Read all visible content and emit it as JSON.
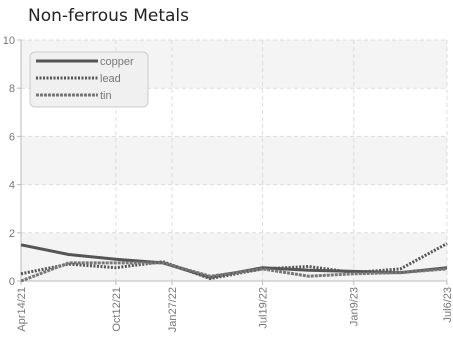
{
  "chart_data": {
    "type": "line",
    "title": "Non-ferrous Metals",
    "xlabel": "",
    "ylabel": "",
    "ylim": [
      0,
      10
    ],
    "yticks": [
      "0",
      "2",
      "4",
      "6",
      "8",
      "10"
    ],
    "x": [
      "2021-04-14",
      "2021-07-14",
      "2021-10-12",
      "2022-01-10",
      "2022-04-10",
      "2022-07-19",
      "2022-10-15",
      "2023-01-09",
      "2023-04-08",
      "2023-07-06"
    ],
    "xtick_labels": [
      {
        "label": "Apr14/21",
        "date": "2021-04-14"
      },
      {
        "label": "Oct12/21",
        "date": "2021-10-12"
      },
      {
        "label": "Jan27/22",
        "date": "2022-01-27"
      },
      {
        "label": "Jul19/22",
        "date": "2022-07-19"
      },
      {
        "label": "Jan9/23",
        "date": "2023-01-09"
      },
      {
        "label": "Jul6/23",
        "date": "2023-07-06"
      }
    ],
    "grid": true,
    "legend_position": "top-left",
    "series": [
      {
        "name": "copper",
        "color": "#555555",
        "style": "solid",
        "values": [
          1.5,
          1.1,
          0.9,
          0.75,
          0.15,
          0.55,
          0.45,
          0.4,
          0.35,
          0.55
        ]
      },
      {
        "name": "lead",
        "color": "#555555",
        "style": "dotted",
        "values": [
          0.3,
          0.7,
          0.55,
          0.8,
          0.1,
          0.5,
          0.6,
          0.35,
          0.5,
          1.55
        ]
      },
      {
        "name": "tin",
        "color": "#777777",
        "style": "dashed",
        "values": [
          0.0,
          0.75,
          0.75,
          0.75,
          0.2,
          0.5,
          0.2,
          0.3,
          0.35,
          0.5
        ]
      }
    ],
    "colors": {
      "band": "#f4f4f4",
      "grid": "#dddddd",
      "axis": "#bbbbbb"
    }
  }
}
